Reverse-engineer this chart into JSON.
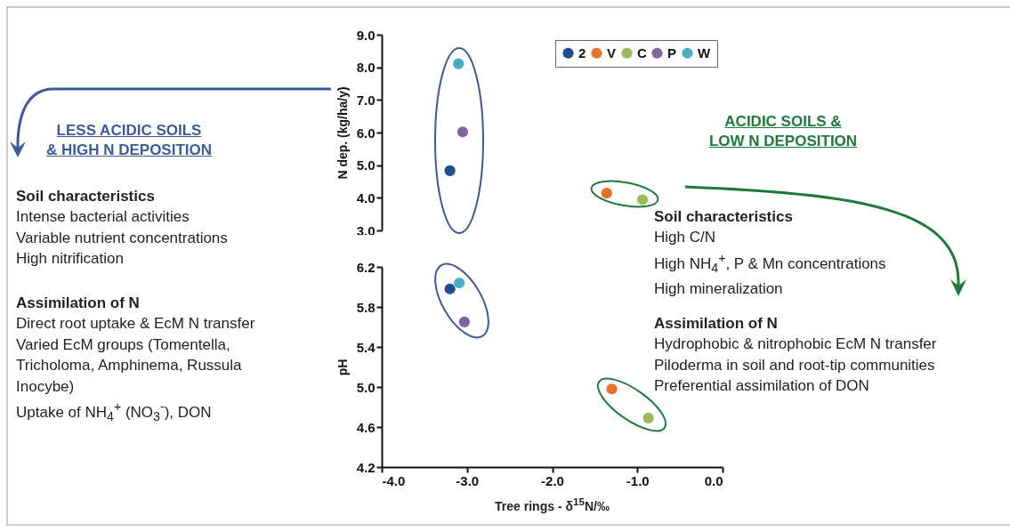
{
  "chart_data": [
    {
      "type": "scatter",
      "ylabel": "N dep. (kg/ha/y)",
      "xlim": [
        -4,
        0
      ],
      "ylim": [
        3,
        9
      ],
      "yticks": [
        {
          "value": 3,
          "label": "3.0"
        },
        {
          "value": 4,
          "label": "4.0"
        },
        {
          "value": 5,
          "label": "5.0"
        },
        {
          "value": 6,
          "label": "6.0"
        },
        {
          "value": 7,
          "label": "7.0"
        },
        {
          "value": 8,
          "label": "8.0"
        },
        {
          "value": 9,
          "label": "9.0"
        }
      ],
      "tick_labels": "y",
      "grid": false,
      "legend": "top right",
      "marker": "circle",
      "series": [
        {
          "name": "2",
          "color": "#1f4e8c",
          "x": [
            -3.2
          ],
          "values": [
            4.83
          ]
        },
        {
          "name": "V",
          "color": "#e8702a",
          "x": [
            -1.36
          ],
          "values": [
            4.14
          ]
        },
        {
          "name": "C",
          "color": "#9bbb59",
          "x": [
            -0.94
          ],
          "values": [
            3.94
          ]
        },
        {
          "name": "P",
          "color": "#8064a2",
          "x": [
            -3.05
          ],
          "values": [
            6.02
          ]
        },
        {
          "name": "W",
          "color": "#4bacc6",
          "x": [
            -3.1
          ],
          "values": [
            8.11
          ]
        }
      ],
      "annotations": [
        "LESS ACIDIC SOILS\n& HIGH N DEPOSITION",
        "Soil characteristics",
        "Intense bacterial activities\nVariable nutrient concentrations\nHigh nitrification",
        "Assimilation of N",
        "Direct root uptake & EcM N transfer\nVaried EcM groups (Tomentella,\nTricholoma, Amphinema, Russula\nInocybe)\nUptake of NH$_{4}$$^{+}$ (NO$_{3}$$^{-}$), DON",
        "ACIDIC SOILS &\nLOW N DEPOSITION",
        "Soil characteristics",
        "High C/N\nHigh NH$_{4}$$^{+}$, P & Mn concentrations\nHigh mineralization",
        "Assimilation of N",
        "Hydrophobic & nitrophobic EcM N transfer\nPiloderma in soil and root-tip communities\nPreferential assimilation of DON"
      ]
    },
    {
      "type": "scatter",
      "xlabel": "Tree rings - δ$^{15}$N/‰",
      "ylabel": "pH",
      "xlim": [
        -4,
        0
      ],
      "ylim": [
        4.2,
        6.2
      ],
      "xticks": [
        {
          "value": -4,
          "label": "-4.0"
        },
        {
          "value": -3,
          "label": "-3.0"
        },
        {
          "value": -2,
          "label": "-2.0"
        },
        {
          "value": -1,
          "label": "-1.0"
        },
        {
          "value": 0,
          "label": "0.0"
        }
      ],
      "yticks": [
        4.2,
        4.6,
        {
          "value": 5,
          "label": "5.0"
        },
        5.4,
        5.8,
        6.2
      ],
      "grid": false,
      "marker": "circle",
      "series": [
        {
          "color": "#1f4e8c",
          "x": [
            -3.2
          ],
          "values": [
            5.98
          ]
        },
        {
          "color": "#e8702a",
          "x": [
            -1.3
          ],
          "values": [
            4.98
          ]
        },
        {
          "color": "#9bbb59",
          "x": [
            -0.87
          ],
          "values": [
            4.69
          ]
        },
        {
          "color": "#8064a2",
          "x": [
            -3.03
          ],
          "values": [
            5.65
          ]
        },
        {
          "color": "#4bacc6",
          "x": [
            -3.09
          ],
          "values": [
            6.04
          ]
        }
      ]
    }
  ]
}
